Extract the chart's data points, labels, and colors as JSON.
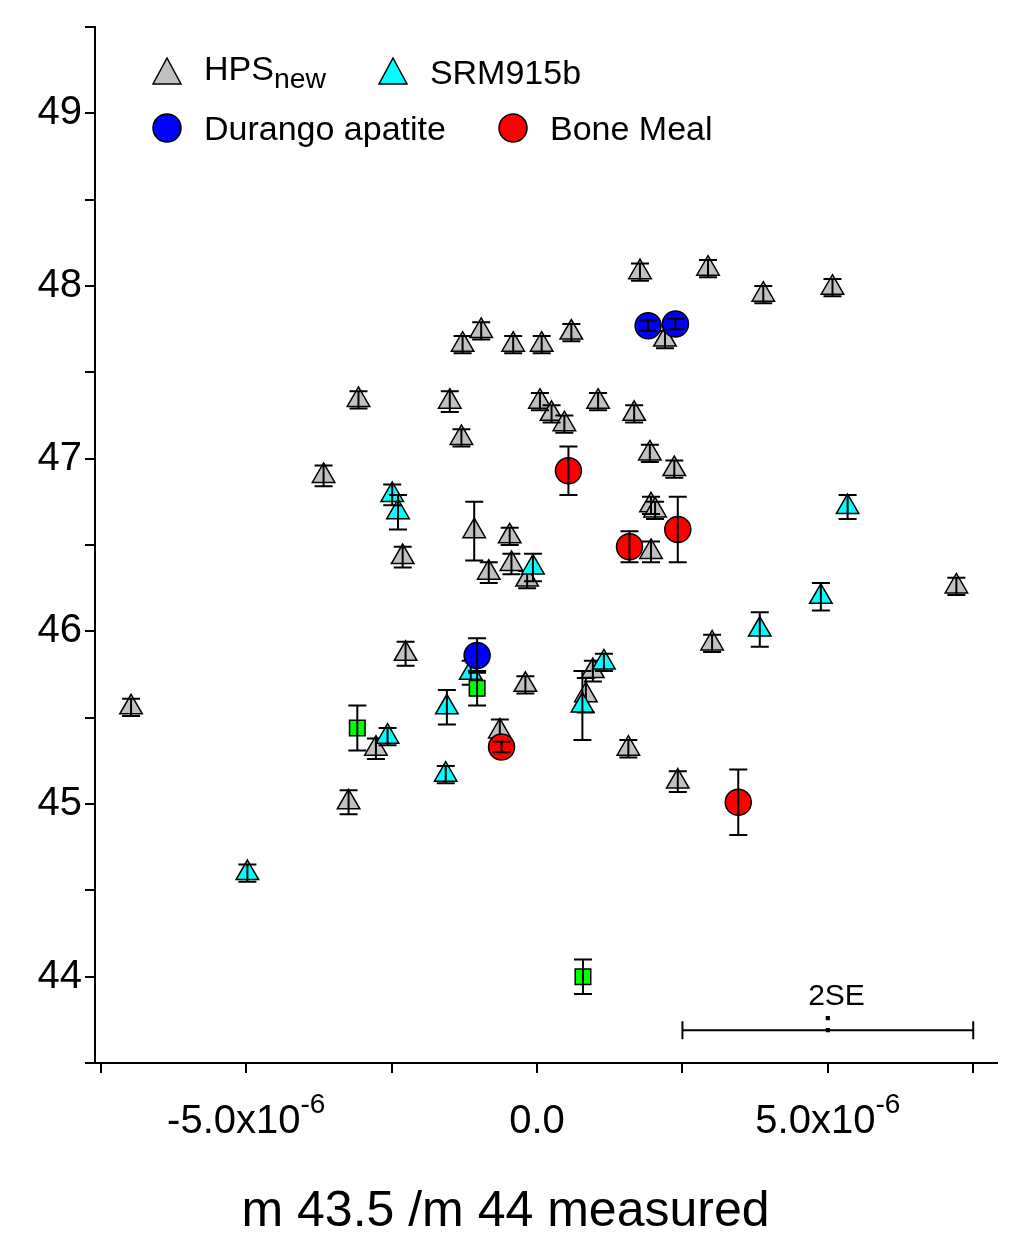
{
  "chart_data": {
    "type": "scatter",
    "xlabel": "m 43.5 /m 44 measured",
    "xlim": [
      -7.6e-06,
      7.9e-06
    ],
    "ylim": [
      43.5,
      49.5
    ],
    "xticks": [
      {
        "value": -7.5e-06,
        "label": null
      },
      {
        "value": -5e-06,
        "label": "-5.0x10$^{-6}$"
      },
      {
        "value": -2.5e-06,
        "label": null
      },
      {
        "value": 0,
        "label": "0.0"
      },
      {
        "value": 2.5e-06,
        "label": null
      },
      {
        "value": 5e-06,
        "label": "5.0x10$^{-6}$"
      },
      {
        "value": 7.5e-06,
        "label": null
      }
    ],
    "yticks": [
      {
        "value": 43.5,
        "label": null
      },
      44,
      {
        "value": 44.5,
        "label": null
      },
      45,
      {
        "value": 45.5,
        "label": null
      },
      46,
      {
        "value": 46.5,
        "label": null
      },
      47,
      {
        "value": 47.5,
        "label": null
      },
      48,
      {
        "value": 48.5,
        "label": null
      },
      49,
      {
        "value": 49.5,
        "label": null
      }
    ],
    "grid": false,
    "legend": "top",
    "series": [
      {
        "name": "HPS$_{new}$",
        "color": "#c0c0c0",
        "marker": "triangle",
        "x": [
          -6.98e-06,
          -3.67e-06,
          -3.07e-06,
          -3.24e-06,
          -2.77e-06,
          -2.31e-06,
          -2.26e-06,
          -1.5e-06,
          -1.3e-06,
          -1.28e-06,
          -9.6e-07,
          -1.08e-06,
          -8.3e-07,
          -4.7e-07,
          -4.4e-07,
          -1.7e-07,
          -4.1e-07,
          8e-08,
          5e-08,
          2.5e-07,
          4.7e-07,
          5.9e-07,
          1.05e-06,
          1.67e-06,
          1.77e-06,
          2.94e-06,
          2.2e-06,
          3.89e-06,
          5.08e-06,
          1.94e-06,
          2.36e-06,
          1.96e-06,
          2.03e-06,
          1.96e-06,
          7.21e-06,
          3.01e-06,
          9.6e-07,
          8.4e-07,
          -2e-07,
          -6.4e-07,
          1.57e-06,
          2.42e-06
        ],
        "values": [
          45.56,
          46.9,
          47.34,
          45.01,
          45.32,
          46.43,
          45.87,
          47.33,
          47.12,
          47.66,
          47.74,
          46.58,
          46.34,
          46.55,
          46.39,
          46.3,
          47.66,
          47.66,
          47.33,
          47.26,
          47.2,
          47.73,
          47.33,
          47.26,
          48.08,
          48.1,
          47.69,
          47.95,
          47.99,
          47.03,
          46.94,
          46.73,
          46.7,
          46.46,
          46.26,
          45.93,
          45.77,
          45.63,
          45.69,
          45.42,
          45.32,
          45.13
        ],
        "errors": [
          0.05,
          0.06,
          0.05,
          0.07,
          0.06,
          0.06,
          0.07,
          0.06,
          0.05,
          0.05,
          0.05,
          0.17,
          0.06,
          0.05,
          0.06,
          0.05,
          0.05,
          0.05,
          0.05,
          0.05,
          0.05,
          0.05,
          0.05,
          0.05,
          0.05,
          0.05,
          0.05,
          0.05,
          0.05,
          0.05,
          0.05,
          0.05,
          0.05,
          0.06,
          0.05,
          0.05,
          0.06,
          0.1,
          0.05,
          0.07,
          0.05,
          0.06
        ]
      },
      {
        "name": "SRM915b",
        "color": "#00ffff",
        "marker": "triangle",
        "x": [
          -4.98e-06,
          -2.49e-06,
          -2.39e-06,
          -2.57e-06,
          -1.55e-06,
          -1.57e-06,
          -1.14e-06,
          -7e-08,
          1.15e-06,
          7.8e-07,
          3.83e-06,
          4.88e-06,
          5.34e-06
        ],
        "values": [
          44.6,
          46.79,
          46.69,
          45.39,
          45.56,
          45.17,
          45.76,
          46.37,
          45.82,
          45.57,
          46.01,
          46.2,
          46.72
        ],
        "errors": [
          0.05,
          0.06,
          0.1,
          0.05,
          0.1,
          0.05,
          0.07,
          0.08,
          0.05,
          0.2,
          0.1,
          0.08,
          0.07
        ]
      },
      {
        "color": "#00ff00",
        "marker": "square",
        "x": [
          -3.09e-06,
          -1.03e-06,
          7.9e-07
        ],
        "values": [
          45.44,
          45.67,
          44.0
        ],
        "errors": [
          0.13,
          0.1,
          0.1
        ]
      },
      {
        "name": "Durango apatite",
        "color": "#0000ff",
        "marker": "circle",
        "x": [
          1.91e-06,
          2.38e-06,
          -1.03e-06
        ],
        "values": [
          47.77,
          47.78,
          45.86
        ],
        "errors": [
          0.03,
          0.03,
          0.1
        ]
      },
      {
        "name": "Bone Meal",
        "color": "#ff0000",
        "marker": "circle",
        "x": [
          5.4e-07,
          1.59e-06,
          2.42e-06,
          -6.1e-07,
          3.46e-06
        ],
        "values": [
          46.93,
          46.49,
          46.59,
          45.33,
          45.01
        ],
        "errors": [
          0.14,
          0.09,
          0.19,
          0.03,
          0.19
        ]
      },
      {
        "color": "#000000",
        "marker": "square",
        "x": [
          5e-06
        ],
        "values": [
          43.69
        ],
        "xerrors": [
          [
            2.5e-06,
            7.5e-06
          ]
        ]
      },
      {
        "color": "#000000",
        "marker": "square",
        "x": [
          5e-06
        ],
        "values": [
          43.76
        ]
      }
    ],
    "annotations": [
      "2SE"
    ]
  }
}
